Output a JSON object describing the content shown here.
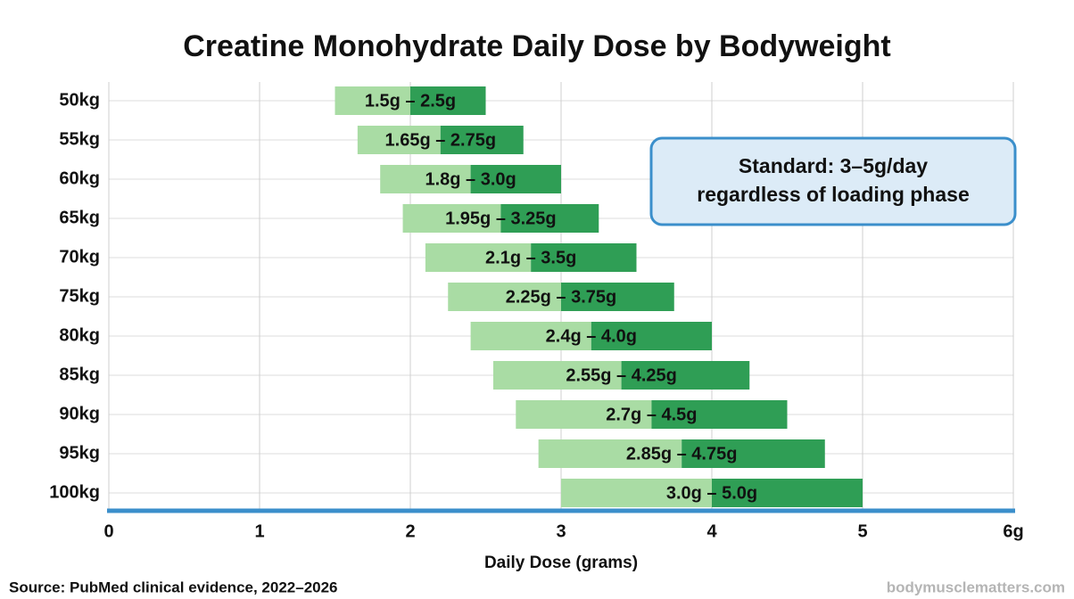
{
  "chart_data": {
    "type": "range-bar",
    "title": "Creatine Monohydrate Daily Dose by Bodyweight",
    "categories": [
      "50kg",
      "55kg",
      "60kg",
      "65kg",
      "70kg",
      "75kg",
      "80kg",
      "85kg",
      "90kg",
      "95kg",
      "100kg"
    ],
    "low": [
      1.5,
      1.65,
      1.8,
      1.95,
      2.1,
      2.25,
      2.4,
      2.55,
      2.7,
      2.85,
      3.0
    ],
    "high": [
      2.5,
      2.75,
      3.0,
      3.25,
      3.5,
      3.75,
      4.0,
      4.25,
      4.5,
      4.75,
      5.0
    ],
    "value_labels": [
      "1.5g – 2.5g",
      "1.65g – 2.75g",
      "1.8g – 3.0g",
      "1.95g – 3.25g",
      "2.1g – 3.5g",
      "2.25g – 3.75g",
      "2.4g – 4.0g",
      "2.55g – 4.25g",
      "2.7g – 4.5g",
      "2.85g – 4.75g",
      "3.0g – 5.0g"
    ],
    "colors": [
      "#a9dca4",
      "#2f9e55"
    ],
    "xlim": [
      0,
      6
    ],
    "xticks": [
      0,
      1,
      2,
      3,
      4,
      5,
      {
        "value": 6,
        "label": "6g"
      }
    ],
    "xlabel": "Daily Dose (grams)",
    "grid": true,
    "annotation": [
      "Standard: 3–5g/day",
      "regardless of loading phase"
    ],
    "source": "Source: PubMed clinical evidence, 2022–2026",
    "watermark": "bodymusclematters.com"
  }
}
